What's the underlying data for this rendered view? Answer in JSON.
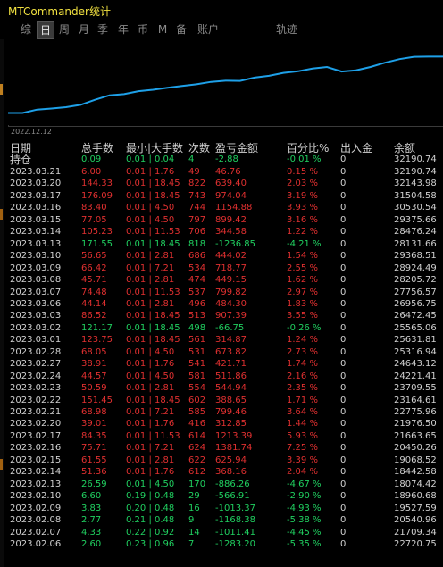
{
  "window": {
    "title": "MTCommander统计"
  },
  "tabs": [
    {
      "label": "综",
      "active": false
    },
    {
      "label": "日",
      "active": true
    },
    {
      "label": "周",
      "active": false
    },
    {
      "label": "月",
      "active": false
    },
    {
      "label": "季",
      "active": false
    },
    {
      "label": "年",
      "active": false
    },
    {
      "label": "币",
      "active": false
    },
    {
      "label": "M",
      "active": false
    },
    {
      "label": "备",
      "active": false
    },
    {
      "label": "账户",
      "active": false
    },
    {
      "label": "轨迹",
      "active": false
    }
  ],
  "chart": {
    "start_label": "2022.12.12",
    "line_color": "#1ea0e8"
  },
  "chart_data": {
    "type": "line",
    "title": "",
    "series": [
      {
        "values": [
          16858,
          16858,
          17780,
          18074,
          18442,
          19068,
          20450,
          21663,
          21976,
          22775,
          23164,
          23709,
          24221,
          24643,
          25316,
          25631,
          25565,
          26472,
          26956,
          27756,
          28205,
          28924,
          29368,
          28131,
          28476,
          29375,
          30530,
          31504,
          32143,
          32190,
          32190
        ]
      }
    ]
  },
  "table": {
    "headers": {
      "date": "日期",
      "lots": "总手数",
      "range": "最小|大手数",
      "count": "次数",
      "pnl": "盈亏金额",
      "pct": "百分比%",
      "io": "出入金",
      "bal": "余额"
    },
    "hold": {
      "date": "持仓",
      "lots": "0.09",
      "range": "0.01 | 0.04",
      "count": "4",
      "pnl": "-2.88",
      "pct": "-0.01 %",
      "io": "0",
      "bal": "32190.74"
    },
    "rows": [
      {
        "date": "2023.03.21",
        "lots": "6.00",
        "range": "0.01 | 1.76",
        "count": "49",
        "pnl": "46.76",
        "pct": "0.15 %",
        "io": "0",
        "bal": "32190.74",
        "sign": "pos"
      },
      {
        "date": "2023.03.20",
        "lots": "144.33",
        "range": "0.01 | 18.45",
        "count": "822",
        "pnl": "639.40",
        "pct": "2.03 %",
        "io": "0",
        "bal": "32143.98",
        "sign": "pos"
      },
      {
        "date": "2023.03.17",
        "lots": "176.09",
        "range": "0.01 | 18.45",
        "count": "743",
        "pnl": "974.04",
        "pct": "3.19 %",
        "io": "0",
        "bal": "31504.58",
        "sign": "pos"
      },
      {
        "date": "2023.03.16",
        "lots": "83.40",
        "range": "0.01 | 4.50",
        "count": "744",
        "pnl": "1154.88",
        "pct": "3.93 %",
        "io": "0",
        "bal": "30530.54",
        "sign": "pos"
      },
      {
        "date": "2023.03.15",
        "lots": "77.05",
        "range": "0.01 | 4.50",
        "count": "797",
        "pnl": "899.42",
        "pct": "3.16 %",
        "io": "0",
        "bal": "29375.66",
        "sign": "pos"
      },
      {
        "date": "2023.03.14",
        "lots": "105.23",
        "range": "0.01 | 11.53",
        "count": "706",
        "pnl": "344.58",
        "pct": "1.22 %",
        "io": "0",
        "bal": "28476.24",
        "sign": "pos"
      },
      {
        "date": "2023.03.13",
        "lots": "171.55",
        "range": "0.01 | 18.45",
        "count": "818",
        "pnl": "-1236.85",
        "pct": "-4.21 %",
        "io": "0",
        "bal": "28131.66",
        "sign": "neg"
      },
      {
        "date": "2023.03.10",
        "lots": "56.65",
        "range": "0.01 | 2.81",
        "count": "686",
        "pnl": "444.02",
        "pct": "1.54 %",
        "io": "0",
        "bal": "29368.51",
        "sign": "pos"
      },
      {
        "date": "2023.03.09",
        "lots": "66.42",
        "range": "0.01 | 7.21",
        "count": "534",
        "pnl": "718.77",
        "pct": "2.55 %",
        "io": "0",
        "bal": "28924.49",
        "sign": "pos"
      },
      {
        "date": "2023.03.08",
        "lots": "45.71",
        "range": "0.01 | 2.81",
        "count": "474",
        "pnl": "449.15",
        "pct": "1.62 %",
        "io": "0",
        "bal": "28205.72",
        "sign": "pos"
      },
      {
        "date": "2023.03.07",
        "lots": "74.48",
        "range": "0.01 | 11.53",
        "count": "537",
        "pnl": "799.82",
        "pct": "2.97 %",
        "io": "0",
        "bal": "27756.57",
        "sign": "pos"
      },
      {
        "date": "2023.03.06",
        "lots": "44.14",
        "range": "0.01 | 2.81",
        "count": "496",
        "pnl": "484.30",
        "pct": "1.83 %",
        "io": "0",
        "bal": "26956.75",
        "sign": "pos"
      },
      {
        "date": "2023.03.03",
        "lots": "86.52",
        "range": "0.01 | 18.45",
        "count": "513",
        "pnl": "907.39",
        "pct": "3.55 %",
        "io": "0",
        "bal": "26472.45",
        "sign": "pos"
      },
      {
        "date": "2023.03.02",
        "lots": "121.17",
        "range": "0.01 | 18.45",
        "count": "498",
        "pnl": "-66.75",
        "pct": "-0.26 %",
        "io": "0",
        "bal": "25565.06",
        "sign": "neg"
      },
      {
        "date": "2023.03.01",
        "lots": "123.75",
        "range": "0.01 | 18.45",
        "count": "561",
        "pnl": "314.87",
        "pct": "1.24 %",
        "io": "0",
        "bal": "25631.81",
        "sign": "pos"
      },
      {
        "date": "2023.02.28",
        "lots": "68.05",
        "range": "0.01 | 4.50",
        "count": "531",
        "pnl": "673.82",
        "pct": "2.73 %",
        "io": "0",
        "bal": "25316.94",
        "sign": "pos"
      },
      {
        "date": "2023.02.27",
        "lots": "38.91",
        "range": "0.01 | 1.76",
        "count": "541",
        "pnl": "421.71",
        "pct": "1.74 %",
        "io": "0",
        "bal": "24643.12",
        "sign": "pos"
      },
      {
        "date": "2023.02.24",
        "lots": "44.57",
        "range": "0.01 | 4.50",
        "count": "581",
        "pnl": "511.86",
        "pct": "2.16 %",
        "io": "0",
        "bal": "24221.41",
        "sign": "pos"
      },
      {
        "date": "2023.02.23",
        "lots": "50.59",
        "range": "0.01 | 2.81",
        "count": "554",
        "pnl": "544.94",
        "pct": "2.35 %",
        "io": "0",
        "bal": "23709.55",
        "sign": "pos"
      },
      {
        "date": "2023.02.22",
        "lots": "151.45",
        "range": "0.01 | 18.45",
        "count": "602",
        "pnl": "388.65",
        "pct": "1.71 %",
        "io": "0",
        "bal": "23164.61",
        "sign": "pos"
      },
      {
        "date": "2023.02.21",
        "lots": "68.98",
        "range": "0.01 | 7.21",
        "count": "585",
        "pnl": "799.46",
        "pct": "3.64 %",
        "io": "0",
        "bal": "22775.96",
        "sign": "pos"
      },
      {
        "date": "2023.02.20",
        "lots": "39.01",
        "range": "0.01 | 1.76",
        "count": "416",
        "pnl": "312.85",
        "pct": "1.44 %",
        "io": "0",
        "bal": "21976.50",
        "sign": "pos"
      },
      {
        "date": "2023.02.17",
        "lots": "84.35",
        "range": "0.01 | 11.53",
        "count": "614",
        "pnl": "1213.39",
        "pct": "5.93 %",
        "io": "0",
        "bal": "21663.65",
        "sign": "pos"
      },
      {
        "date": "2023.02.16",
        "lots": "75.71",
        "range": "0.01 | 7.21",
        "count": "624",
        "pnl": "1381.74",
        "pct": "7.25 %",
        "io": "0",
        "bal": "20450.26",
        "sign": "pos"
      },
      {
        "date": "2023.02.15",
        "lots": "61.55",
        "range": "0.01 | 2.81",
        "count": "622",
        "pnl": "625.94",
        "pct": "3.39 %",
        "io": "0",
        "bal": "19068.52",
        "sign": "pos"
      },
      {
        "date": "2023.02.14",
        "lots": "51.36",
        "range": "0.01 | 1.76",
        "count": "612",
        "pnl": "368.16",
        "pct": "2.04 %",
        "io": "0",
        "bal": "18442.58",
        "sign": "pos"
      },
      {
        "date": "2023.02.13",
        "lots": "26.59",
        "range": "0.01 | 4.50",
        "count": "170",
        "pnl": "-886.26",
        "pct": "-4.67 %",
        "io": "0",
        "bal": "18074.42",
        "sign": "neg"
      },
      {
        "date": "2023.02.10",
        "lots": "6.60",
        "range": "0.19 | 0.48",
        "count": "29",
        "pnl": "-566.91",
        "pct": "-2.90 %",
        "io": "0",
        "bal": "18960.68",
        "sign": "neg"
      },
      {
        "date": "2023.02.09",
        "lots": "3.83",
        "range": "0.20 | 0.48",
        "count": "16",
        "pnl": "-1013.37",
        "pct": "-4.93 %",
        "io": "0",
        "bal": "19527.59",
        "sign": "neg"
      },
      {
        "date": "2023.02.08",
        "lots": "2.77",
        "range": "0.21 | 0.48",
        "count": "9",
        "pnl": "-1168.38",
        "pct": "-5.38 %",
        "io": "0",
        "bal": "20540.96",
        "sign": "neg"
      },
      {
        "date": "2023.02.07",
        "lots": "4.33",
        "range": "0.22 | 0.92",
        "count": "14",
        "pnl": "-1011.41",
        "pct": "-4.45 %",
        "io": "0",
        "bal": "21709.34",
        "sign": "neg"
      },
      {
        "date": "2023.02.06",
        "lots": "2.60",
        "range": "0.23 | 0.96",
        "count": "7",
        "pnl": "-1283.20",
        "pct": "-5.35 %",
        "io": "0",
        "bal": "22720.75",
        "sign": "neg"
      }
    ]
  }
}
